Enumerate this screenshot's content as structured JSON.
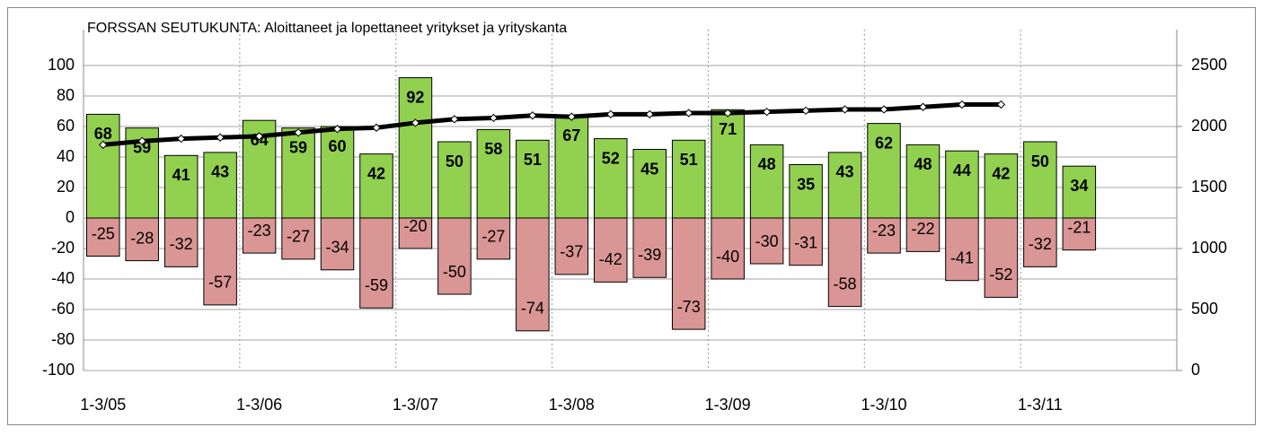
{
  "chart_data": {
    "type": "bar",
    "title": "FORSSAN SEUTUKUNTA: Aloittaneet ja lopettaneet yritykset ja yrityskanta",
    "categories": [
      "1-3/05",
      null,
      null,
      null,
      "1-3/06",
      null,
      null,
      null,
      "1-3/07",
      null,
      null,
      null,
      "1-3/08",
      null,
      null,
      null,
      "1-3/09",
      null,
      null,
      null,
      "1-3/10",
      null,
      null,
      null,
      "1-3/11",
      null,
      null,
      null
    ],
    "series": [
      {
        "type": "bar",
        "color": "#92d050",
        "values": [
          68,
          59,
          41,
          43,
          64,
          59,
          60,
          42,
          92,
          50,
          58,
          51,
          67,
          52,
          45,
          51,
          71,
          48,
          35,
          43,
          62,
          48,
          44,
          42,
          50,
          34,
          null,
          null
        ]
      },
      {
        "type": "bar",
        "color": "#da9694",
        "values": [
          -25,
          -28,
          -32,
          -57,
          -23,
          -27,
          -34,
          -59,
          -20,
          -50,
          -27,
          -74,
          -37,
          -42,
          -39,
          -73,
          -40,
          -30,
          -31,
          -58,
          -23,
          -22,
          -41,
          -52,
          -32,
          -21,
          null,
          null
        ]
      },
      {
        "type": "line",
        "axis": "y2",
        "color": "#000000",
        "values": [
          1850,
          1880,
          1900,
          1910,
          1920,
          1950,
          1980,
          1990,
          2030,
          2060,
          2070,
          2090,
          2080,
          2100,
          2100,
          2110,
          2110,
          2120,
          2130,
          2140,
          2140,
          2160,
          2180,
          2180,
          null,
          null,
          null,
          null
        ]
      }
    ],
    "ylim": [
      -100,
      100
    ],
    "yticks": [
      -100,
      -80,
      -60,
      -40,
      -20,
      0,
      20,
      40,
      60,
      80,
      100
    ],
    "y2lim": [
      0,
      2500
    ],
    "y2ticks": [
      0,
      500,
      1000,
      1500,
      2000,
      2500
    ],
    "grid": true
  }
}
